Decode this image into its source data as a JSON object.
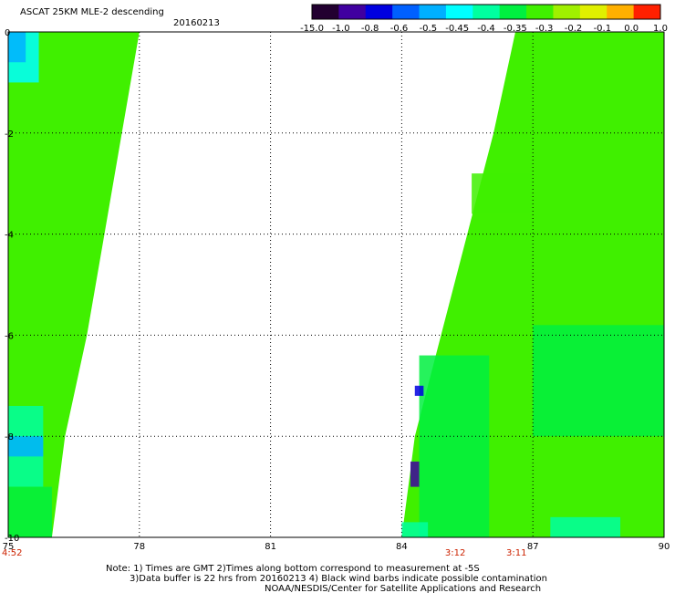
{
  "chart_data": {
    "type": "heatmap",
    "title": "ASCAT 25KM MLE-2 descending",
    "date": "20160213",
    "xlim": [
      75,
      90
    ],
    "ylim": [
      -10,
      0
    ],
    "x_ticks": [
      "75",
      "78",
      "81",
      "84",
      "87",
      "90"
    ],
    "y_ticks": [
      "0",
      "-2",
      "-4",
      "-6",
      "-8",
      "-10"
    ],
    "grid": true,
    "colorbar": {
      "labels": [
        "-15.0",
        "-1.0",
        "-0.8",
        "-0.6",
        "-0.5",
        "-0.45",
        "-0.4",
        "-0.35",
        "-0.3",
        "-0.2",
        "-0.1",
        "0.0",
        "1.0"
      ],
      "colors": [
        "#220030",
        "#4000a0",
        "#0000e0",
        "#0060ff",
        "#00b0ff",
        "#00ffff",
        "#00ffa0",
        "#00f040",
        "#40f000",
        "#a0f000",
        "#e0f000",
        "#ffb000",
        "#ff2000"
      ]
    },
    "swaths": [
      {
        "name": "west",
        "edge": [
          [
            -10,
            76.0
          ],
          [
            -8,
            76.3
          ],
          [
            -6,
            76.8
          ],
          [
            -4,
            77.2
          ],
          [
            -2,
            77.6
          ],
          [
            0,
            78.0
          ]
        ],
        "patches": [
          {
            "x": [
              75.0,
              75.7
            ],
            "y": [
              -1.0,
              0.0
            ],
            "value": -0.45
          },
          {
            "x": [
              75.0,
              75.4
            ],
            "y": [
              -0.6,
              0.0
            ],
            "value": -0.5
          },
          {
            "x": [
              75.0,
              75.8
            ],
            "y": [
              -9.0,
              -7.4
            ],
            "value": -0.4
          },
          {
            "x": [
              75.0,
              75.8
            ],
            "y": [
              -8.4,
              -8.0
            ],
            "value": -0.5
          },
          {
            "x": [
              75.0,
              76.0
            ],
            "y": [
              -10.0,
              -9.0
            ],
            "value": -0.35
          }
        ]
      },
      {
        "name": "east",
        "edge": [
          [
            -10,
            84.0
          ],
          [
            -8,
            84.3
          ],
          [
            -6,
            84.9
          ],
          [
            -4,
            85.5
          ],
          [
            -2,
            86.1
          ],
          [
            0,
            86.6
          ]
        ],
        "patches": [
          {
            "x": [
              85.6,
              87.0
            ],
            "y": [
              -3.6,
              -2.8
            ],
            "value": -0.3
          },
          {
            "x": [
              84.4,
              86.0
            ],
            "y": [
              -10.0,
              -6.4
            ],
            "value": -0.35
          },
          {
            "x": [
              87.0,
              90.0
            ],
            "y": [
              -8.0,
              -5.8
            ],
            "value": -0.35
          },
          {
            "x": [
              84.3,
              84.5
            ],
            "y": [
              -7.2,
              -7.0
            ],
            "value": -0.8
          },
          {
            "x": [
              84.2,
              84.4
            ],
            "y": [
              -9.0,
              -8.5
            ],
            "value": -1.0
          },
          {
            "x": [
              87.4,
              89.0
            ],
            "y": [
              -10.0,
              -9.6
            ],
            "value": -0.4
          },
          {
            "x": [
              84.0,
              84.6
            ],
            "y": [
              -10.0,
              -9.7
            ],
            "value": -0.4
          }
        ]
      }
    ],
    "times": [
      {
        "label": "4:52",
        "x": 75.0
      },
      {
        "label": "3:12",
        "x": 85.2
      },
      {
        "label": "3:11",
        "x": 86.6
      }
    ],
    "notes": [
      "Note: 1) Times are GMT 2)Times along bottom correspond to measurement at -5S",
      "3)Data buffer is 22 hrs from 20160213 4) Black wind barbs indicate possible contamination",
      "NOAA/NESDIS/Center for Satellite Applications and Research"
    ]
  }
}
